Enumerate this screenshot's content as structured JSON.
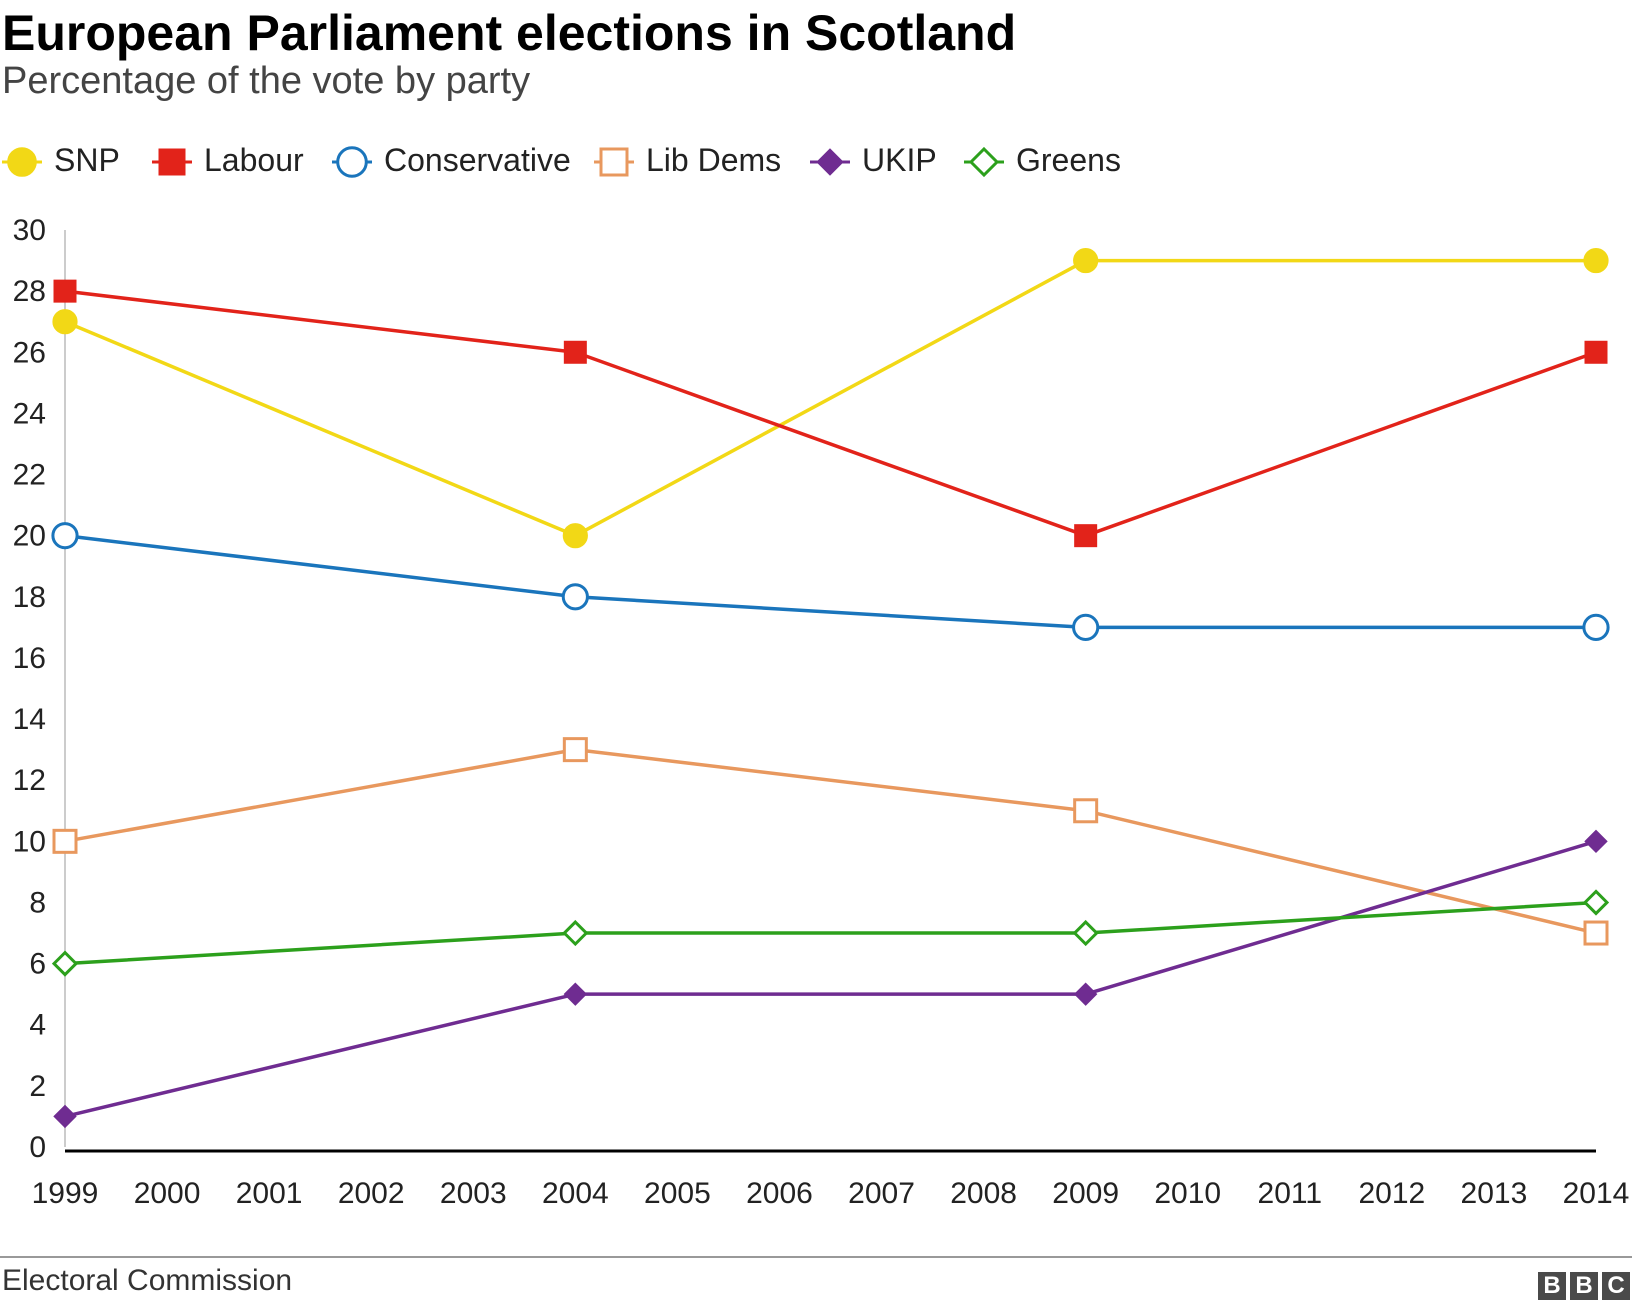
{
  "title": "European Parliament elections in Scotland",
  "subtitle": "Percentage of the vote by party",
  "source": "Electoral Commission",
  "logo_text": [
    "B",
    "B",
    "C"
  ],
  "chart_data": {
    "type": "line",
    "title": "European Parliament elections in Scotland",
    "subtitle": "Percentage of the vote by party",
    "xlabel": "",
    "ylabel": "",
    "x": [
      1999,
      2004,
      2009,
      2014
    ],
    "x_ticks": [
      "1999",
      "2000",
      "2001",
      "2002",
      "2003",
      "2004",
      "2005",
      "2006",
      "2007",
      "2008",
      "2009",
      "2010",
      "2011",
      "2012",
      "2013",
      "2014"
    ],
    "xlim": [
      1999,
      2014
    ],
    "y_ticks": [
      "0",
      "2",
      "4",
      "6",
      "8",
      "10",
      "12",
      "14",
      "16",
      "18",
      "20",
      "22",
      "24",
      "26",
      "28",
      "30"
    ],
    "ylim": [
      0,
      30
    ],
    "grid": false,
    "legend_position": "top-left",
    "series": [
      {
        "name": "SNP",
        "color": "#f2d816",
        "marker": "circle",
        "filled": true,
        "values": [
          27,
          20,
          29,
          29
        ]
      },
      {
        "name": "Labour",
        "color": "#e2231a",
        "marker": "square",
        "filled": true,
        "values": [
          28,
          26,
          20,
          26
        ]
      },
      {
        "name": "Conservative",
        "color": "#1a75bc",
        "marker": "circle",
        "filled": false,
        "values": [
          20,
          18,
          17,
          17
        ]
      },
      {
        "name": "Lib Dems",
        "color": "#e8985e",
        "marker": "square",
        "filled": false,
        "values": [
          10,
          13,
          11,
          7
        ]
      },
      {
        "name": "UKIP",
        "color": "#6f2c91",
        "marker": "diamond",
        "filled": true,
        "values": [
          1,
          5,
          5,
          10
        ]
      },
      {
        "name": "Greens",
        "color": "#2ca01c",
        "marker": "diamond",
        "filled": false,
        "values": [
          6,
          7,
          7,
          8
        ]
      }
    ]
  }
}
